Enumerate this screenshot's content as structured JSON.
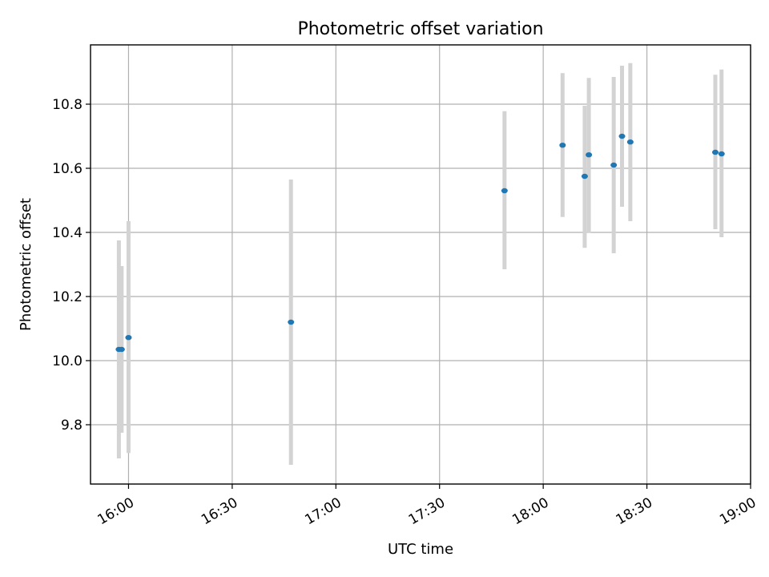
{
  "chart_data": {
    "type": "scatter",
    "title": "Photometric offset variation",
    "xlabel": "UTC time",
    "ylabel": "Photometric offset",
    "x_axis_type": "time",
    "xlim": [
      "15:49",
      "19:00"
    ],
    "ylim": [
      9.615,
      10.985
    ],
    "x_ticks": [
      "16:00",
      "16:30",
      "17:00",
      "17:30",
      "18:00",
      "18:30",
      "19:00"
    ],
    "y_ticks": [
      9.8,
      10.0,
      10.2,
      10.4,
      10.6,
      10.8
    ],
    "y_tick_labels": [
      "9.8",
      "10.0",
      "10.2",
      "10.4",
      "10.6",
      "10.8"
    ],
    "grid": true,
    "legend": false,
    "colors": {
      "point": "#1f77b4",
      "errorbar": "#d3d3d3"
    },
    "series": [
      {
        "points": [
          {
            "x": "15:57:12",
            "y": 10.035,
            "ylow": 9.695,
            "yhigh": 10.375
          },
          {
            "x": "15:58:00",
            "y": 10.035,
            "ylow": 9.775,
            "yhigh": 10.295
          },
          {
            "x": "16:00:00",
            "y": 10.072,
            "ylow": 9.712,
            "yhigh": 10.435
          },
          {
            "x": "16:47:00",
            "y": 10.12,
            "ylow": 9.675,
            "yhigh": 10.565
          },
          {
            "x": "17:48:48",
            "y": 10.53,
            "ylow": 10.285,
            "yhigh": 10.778
          },
          {
            "x": "18:05:36",
            "y": 10.672,
            "ylow": 10.448,
            "yhigh": 10.897
          },
          {
            "x": "18:12:00",
            "y": 10.575,
            "ylow": 10.352,
            "yhigh": 10.795
          },
          {
            "x": "18:13:12",
            "y": 10.642,
            "ylow": 10.398,
            "yhigh": 10.882
          },
          {
            "x": "18:20:24",
            "y": 10.61,
            "ylow": 10.335,
            "yhigh": 10.885
          },
          {
            "x": "18:22:48",
            "y": 10.7,
            "ylow": 10.48,
            "yhigh": 10.92
          },
          {
            "x": "18:25:12",
            "y": 10.682,
            "ylow": 10.435,
            "yhigh": 10.928
          },
          {
            "x": "18:49:48",
            "y": 10.65,
            "ylow": 10.41,
            "yhigh": 10.892
          },
          {
            "x": "18:51:36",
            "y": 10.645,
            "ylow": 10.385,
            "yhigh": 10.908
          }
        ]
      }
    ]
  }
}
